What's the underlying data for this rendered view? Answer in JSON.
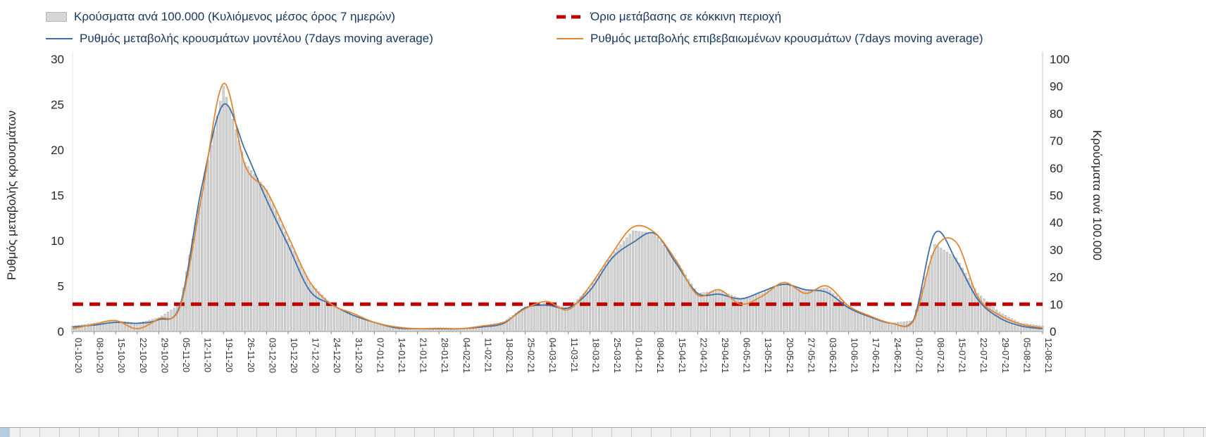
{
  "legend": {
    "bars": "Κρούσματα ανά 100.000 (Κυλιόμενος μέσος όρος 7 ημερών)",
    "threshold": "Όριο μετάβασης σε κόκκινη περιοχή",
    "model": "Ρυθμός μεταβολής κρουσμάτων μοντέλου (7days moving average)",
    "confirmed": "Ρυθμός μεταβολής επιβεβαιωμένων κρουσμάτων (7days moving average)"
  },
  "chart_data": {
    "type": "composite",
    "left_axis": {
      "label": "Ρυθμός μεταβολής κρουσμάτων",
      "min": 0,
      "max": 30,
      "step": 5
    },
    "right_axis": {
      "label": "Κρούσματα ανά 100.000",
      "min": 0,
      "max": 100,
      "step": 10
    },
    "threshold_left_value": 3,
    "grid": false,
    "legend_position": "top",
    "x": [
      "01-10-20",
      "08-10-20",
      "15-10-20",
      "22-10-20",
      "29-10-20",
      "05-11-20",
      "12-11-20",
      "19-11-20",
      "26-11-20",
      "03-12-20",
      "10-12-20",
      "17-12-20",
      "24-12-20",
      "31-12-20",
      "07-01-21",
      "14-01-21",
      "21-01-21",
      "28-01-21",
      "04-02-21",
      "11-02-21",
      "18-02-21",
      "25-02-21",
      "04-03-21",
      "11-03-21",
      "18-03-21",
      "25-03-21",
      "01-04-21",
      "08-04-21",
      "15-04-21",
      "22-04-21",
      "29-04-21",
      "06-05-21",
      "13-05-21",
      "20-05-21",
      "27-05-21",
      "03-06-21",
      "10-06-21",
      "17-06-21",
      "24-06-21",
      "01-07-21",
      "08-07-21",
      "15-07-21",
      "22-07-21",
      "29-07-21",
      "05-08-21",
      "12-08-21"
    ],
    "series": [
      {
        "id": "cases",
        "name": "Κρούσματα ανά 100.000 (Κυλιόμενος μέσος όρος 7 ημερών)",
        "type": "bar",
        "axis": "right",
        "values": [
          2,
          3,
          4,
          3,
          5,
          10,
          52,
          90,
          62,
          52,
          34,
          18,
          10,
          6,
          3.5,
          1.5,
          1,
          1,
          1,
          2,
          3.5,
          9,
          10.5,
          8.5,
          16,
          28,
          37,
          36,
          26,
          14,
          15,
          12,
          14,
          17.5,
          15,
          16,
          9,
          5.5,
          3,
          4,
          32,
          27,
          14,
          7,
          3,
          2
        ]
      },
      {
        "id": "model",
        "name": "Ρυθμός μεταβολής κρουσμάτων μοντέλου (7days moving average)",
        "type": "line",
        "axis": "left",
        "color": "#3f6fa8",
        "values": [
          0.5,
          0.7,
          1,
          0.9,
          1.3,
          3,
          16,
          25,
          20,
          14.5,
          9.5,
          4.5,
          3,
          1.8,
          1,
          0.4,
          0.3,
          0.3,
          0.3,
          0.5,
          0.9,
          2.6,
          2.9,
          2.6,
          4.5,
          8,
          9.8,
          10.8,
          7.5,
          4.2,
          4.1,
          3.6,
          4.4,
          5.2,
          4.6,
          4.3,
          2.6,
          1.6,
          0.9,
          1.2,
          10.8,
          7.8,
          3.5,
          1.5,
          0.6,
          0.3
        ]
      },
      {
        "id": "confirmed",
        "name": "Ρυθμός μεταβολής επιβεβαιωμένων κρουσμάτων (7days moving average)",
        "type": "line",
        "axis": "left",
        "color": "#e3862f",
        "values": [
          0.3,
          0.8,
          1.2,
          0.3,
          1.4,
          2.8,
          15,
          27.3,
          18.3,
          15.5,
          10.5,
          5.5,
          3,
          2,
          1,
          0.5,
          0.3,
          0.35,
          0.3,
          0.6,
          1,
          2.5,
          3.3,
          2.4,
          5,
          8.5,
          11.5,
          10.9,
          7.8,
          4,
          4.6,
          3,
          3.9,
          5.4,
          4.2,
          5,
          2.8,
          1.7,
          0.9,
          1.1,
          9,
          9.8,
          3.8,
          1.8,
          0.8,
          0.4
        ]
      }
    ],
    "colors": {
      "threshold": "#c00000",
      "bar_fill": "#d6d6d6",
      "bar_stroke": "#9e9e9e",
      "model": "#3f6fa8",
      "confirmed": "#e3862f"
    }
  }
}
